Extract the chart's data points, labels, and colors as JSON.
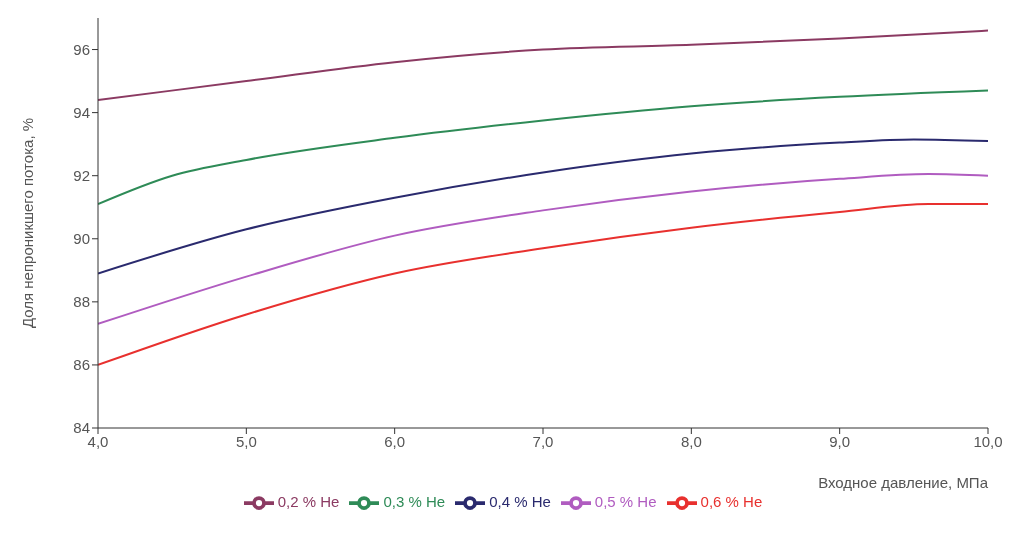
{
  "chart_data": {
    "type": "line",
    "xlabel": "Входное давление,  МПа",
    "ylabel": "Доля непроникшего потока,  %",
    "xlim": [
      4,
      10
    ],
    "xticks": [
      {
        "value": 4,
        "label": "4,0"
      },
      {
        "value": 5,
        "label": "5,0"
      },
      {
        "value": 6,
        "label": "6,0"
      },
      {
        "value": 7,
        "label": "7,0"
      },
      {
        "value": 8,
        "label": "8,0"
      },
      {
        "value": 9,
        "label": "9,0"
      },
      {
        "value": 10,
        "label": "10,0"
      }
    ],
    "ylim": [
      84,
      97
    ],
    "yticks": [
      84,
      86,
      88,
      90,
      92,
      94,
      96
    ],
    "grid": false,
    "legend": "bottom",
    "marker": "none",
    "line_style": "solid",
    "series": [
      {
        "name": "0,2 % He",
        "color": "#8b3a62",
        "x": [
          4,
          5,
          6,
          7,
          8,
          9,
          10
        ],
        "values": [
          94.4,
          95.0,
          95.6,
          96.0,
          96.15,
          96.35,
          96.6
        ]
      },
      {
        "name": "0,3 % He",
        "color": "#2e8b57",
        "x": [
          4,
          4.5,
          5,
          6,
          7,
          8,
          9,
          10
        ],
        "values": [
          91.1,
          92.0,
          92.5,
          93.2,
          93.75,
          94.2,
          94.5,
          94.7
        ]
      },
      {
        "name": "0,4 % He",
        "color": "#2a2a6e",
        "x": [
          4,
          5,
          6,
          7,
          8,
          9,
          9.5,
          10
        ],
        "values": [
          88.9,
          90.3,
          91.3,
          92.1,
          92.7,
          93.05,
          93.15,
          93.1
        ]
      },
      {
        "name": "0,5 % He",
        "color": "#b05cc0",
        "x": [
          4,
          5,
          6,
          7,
          8,
          9,
          9.6,
          10
        ],
        "values": [
          87.3,
          88.8,
          90.1,
          90.9,
          91.5,
          91.9,
          92.05,
          92.0
        ]
      },
      {
        "name": "0,6 % He",
        "color": "#e8302e",
        "x": [
          4,
          5,
          6,
          7,
          8,
          9,
          9.6,
          10
        ],
        "values": [
          86.0,
          87.6,
          88.9,
          89.7,
          90.35,
          90.85,
          91.1,
          91.1
        ]
      }
    ]
  }
}
